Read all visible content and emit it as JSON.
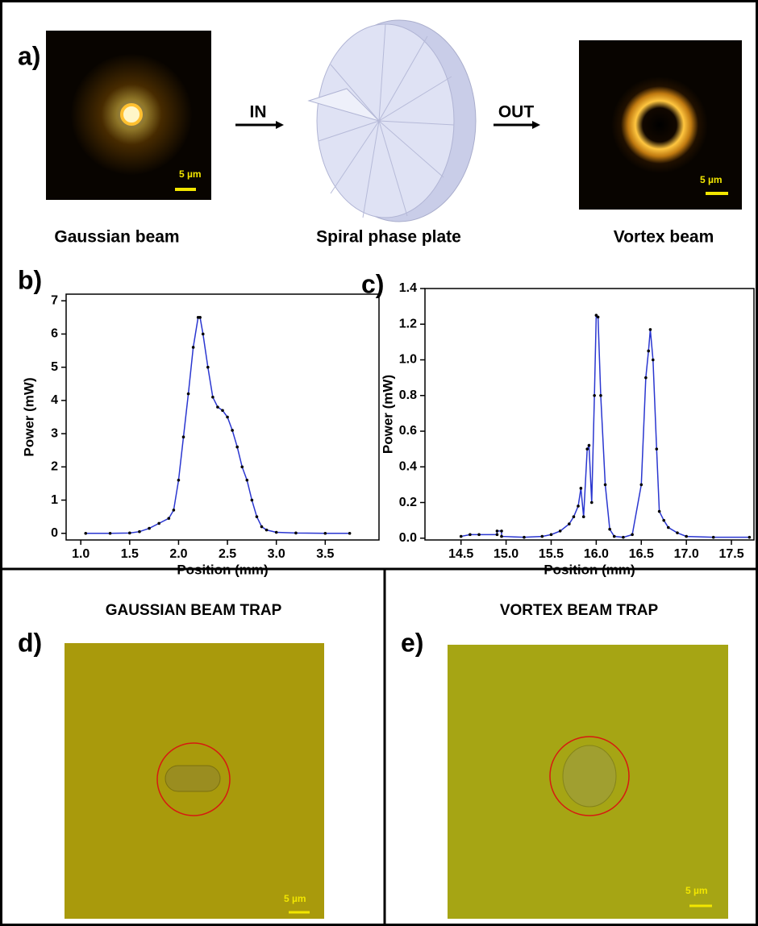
{
  "panels": {
    "a": {
      "label": "a)",
      "gaussian_caption": "Gaussian beam",
      "plate_caption": "Spiral phase plate",
      "vortex_caption": "Vortex beam",
      "in_label": "IN",
      "out_label": "OUT",
      "gaussian_scale": "5 µm",
      "vortex_scale": "5 µm"
    },
    "b": {
      "label": "b)"
    },
    "c": {
      "label": "c)"
    },
    "d": {
      "label": "d)",
      "title": "GAUSSIAN BEAM TRAP",
      "scale": "5 µm"
    },
    "e": {
      "label": "e)",
      "title": "VORTEX BEAM TRAP",
      "scale": "5 µm"
    }
  },
  "chart_data": [
    {
      "type": "line",
      "xlabel": "Position (mm)",
      "ylabel": "Power (mW)",
      "xlim": [
        0.85,
        4.05
      ],
      "ylim": [
        -0.2,
        7.2
      ],
      "xticks": [
        {
          "value": 1,
          "label": "1.0"
        },
        1.5,
        {
          "value": 2,
          "label": "2.0"
        },
        2.5,
        {
          "value": 3,
          "label": "3.0"
        },
        3.5
      ],
      "yticks": [
        0,
        1,
        2,
        3,
        4,
        5,
        6,
        7
      ],
      "series": [
        {
          "color": "#2a36d0",
          "marker_color": "#000000",
          "x": [
            1.05,
            1.3,
            1.5,
            1.6,
            1.7,
            1.8,
            1.9,
            1.95,
            2.0,
            2.05,
            2.1,
            2.15,
            2.2,
            2.22,
            2.25,
            2.3,
            2.35,
            2.4,
            2.45,
            2.5,
            2.55,
            2.6,
            2.65,
            2.7,
            2.75,
            2.8,
            2.85,
            2.9,
            3.0,
            3.2,
            3.5,
            3.75
          ],
          "values": [
            0,
            0,
            0.01,
            0.05,
            0.15,
            0.3,
            0.45,
            0.7,
            1.6,
            2.9,
            4.2,
            5.6,
            6.5,
            6.5,
            6.0,
            5.0,
            4.1,
            3.8,
            3.7,
            3.5,
            3.1,
            2.6,
            2.0,
            1.6,
            1.0,
            0.5,
            0.2,
            0.1,
            0.03,
            0.01,
            0,
            0
          ]
        }
      ]
    },
    {
      "type": "line",
      "xlabel": "Position (mm)",
      "ylabel": "Power (mW)",
      "xlim": [
        14.1,
        17.75
      ],
      "ylim": [
        -0.01,
        1.4
      ],
      "xticks": [
        14.5,
        {
          "value": 15,
          "label": "15.0"
        },
        15.5,
        {
          "value": 16,
          "label": "16.0"
        },
        16.5,
        {
          "value": 17,
          "label": "17.0"
        },
        17.5
      ],
      "yticks": [
        {
          "value": 0,
          "label": "0.0"
        },
        0.2,
        0.4,
        0.6,
        0.8,
        {
          "value": 1,
          "label": "1.0"
        },
        1.2,
        1.4
      ],
      "series": [
        {
          "color": "#2a36d0",
          "marker_color": "#000000",
          "x": [
            14.5,
            14.6,
            14.7,
            14.9,
            14.9,
            14.95,
            14.95,
            15.2,
            15.4,
            15.5,
            15.6,
            15.7,
            15.75,
            15.8,
            15.83,
            15.86,
            15.9,
            15.92,
            15.95,
            15.98,
            16.0,
            16.02,
            16.05,
            16.1,
            16.15,
            16.2,
            16.3,
            16.4,
            16.5,
            16.55,
            16.58,
            16.6,
            16.63,
            16.67,
            16.7,
            16.75,
            16.8,
            16.9,
            17.0,
            17.3,
            17.7
          ],
          "values": [
            0.01,
            0.02,
            0.02,
            0.02,
            0.04,
            0.04,
            0.01,
            0.005,
            0.01,
            0.02,
            0.04,
            0.08,
            0.12,
            0.18,
            0.28,
            0.12,
            0.5,
            0.52,
            0.2,
            0.8,
            1.25,
            1.24,
            0.8,
            0.3,
            0.05,
            0.01,
            0.005,
            0.02,
            0.3,
            0.9,
            1.05,
            1.17,
            1.0,
            0.5,
            0.15,
            0.1,
            0.06,
            0.03,
            0.01,
            0.005,
            0.005
          ]
        }
      ]
    }
  ]
}
